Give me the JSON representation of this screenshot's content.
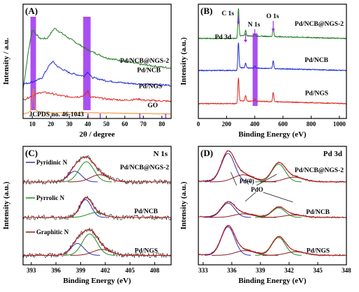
{
  "colors": {
    "black": "#1a1a1a",
    "green": "#1f7a1f",
    "blue": "#1c2bd6",
    "red": "#e0221b",
    "orange": "#f08a1c",
    "purple": "#9b30f0",
    "xpsFit": "#2f2fb0",
    "xpsComp1": "#2f2fb0",
    "xpsComp2": "#1f8a1f",
    "xpsComp3": "#8b1a1a",
    "xpsEnv": "#c41a1a"
  },
  "chart_data": [
    {
      "panel": "A",
      "type": "line",
      "panel_label": "(A)",
      "xlabel": "2θ / degree",
      "ylabel": "Intensity / a.u.",
      "xlim": [
        5,
        85
      ],
      "xticks": [
        "10",
        "20",
        "30",
        "40",
        "50",
        "60",
        "70",
        "80"
      ],
      "highlight_bands": [
        [
          9,
          12
        ],
        [
          37.5,
          41.5
        ]
      ],
      "series": [
        {
          "name": "Pd/NCB@NGS-2",
          "color": "green",
          "points": [
            [
              5,
              25
            ],
            [
              8,
              60
            ],
            [
              10,
              78
            ],
            [
              14,
              70
            ],
            [
              18,
              70
            ],
            [
              22,
              79
            ],
            [
              30,
              70
            ],
            [
              40,
              60
            ],
            [
              50,
              53
            ],
            [
              60,
              50
            ],
            [
              70,
              47
            ],
            [
              85,
              44
            ]
          ]
        },
        {
          "name": "Pd/NCB",
          "color": "blue",
          "points": [
            [
              5,
              30
            ],
            [
              10,
              32
            ],
            [
              15,
              35
            ],
            [
              19,
              46
            ],
            [
              21,
              50
            ],
            [
              24,
              45
            ],
            [
              30,
              40
            ],
            [
              35,
              38
            ],
            [
              38,
              37
            ],
            [
              40,
              41
            ],
            [
              42,
              36
            ],
            [
              50,
              33
            ],
            [
              60,
              31
            ],
            [
              70,
              30
            ],
            [
              85,
              29
            ]
          ]
        },
        {
          "name": "Pd/NGS",
          "color": "red",
          "points": [
            [
              5,
              16
            ],
            [
              10,
              20
            ],
            [
              15,
              23
            ],
            [
              20,
              22
            ],
            [
              25,
              20
            ],
            [
              30,
              19
            ],
            [
              35,
              19
            ],
            [
              38,
              20
            ],
            [
              40,
              24
            ],
            [
              41.5,
              19
            ],
            [
              46,
              18
            ],
            [
              50,
              17
            ],
            [
              60,
              16
            ],
            [
              68,
              17
            ],
            [
              70,
              16
            ],
            [
              85,
              15
            ]
          ]
        },
        {
          "name": "GO",
          "color": "orange",
          "points": [
            [
              5,
              4
            ],
            [
              8,
              5
            ],
            [
              9.5,
              8
            ],
            [
              10.5,
              28
            ],
            [
              11.5,
              8
            ],
            [
              13,
              6
            ],
            [
              20,
              5
            ],
            [
              40,
              5
            ],
            [
              85,
              4
            ]
          ]
        }
      ],
      "reference": {
        "name": "JCPDS no. 46-1043",
        "sticks": [
          40.1,
          46.7,
          68.1,
          82.1
        ]
      }
    },
    {
      "panel": "B",
      "type": "line",
      "panel_label": "(B)",
      "xlabel": "Binding Energy (eV)",
      "ylabel": "Intensity (a.u.)",
      "xlim": [
        0,
        1050
      ],
      "xticks": [
        "0",
        "200",
        "400",
        "600",
        "800",
        "1000"
      ],
      "highlight_bands": [
        [
          385,
          420
        ]
      ],
      "peak_labels": [
        {
          "text": "C 1s",
          "x": 284
        },
        {
          "text": "Pd 3d",
          "x": 335
        },
        {
          "text": "N 1s",
          "x": 400
        },
        {
          "text": "O 1s",
          "x": 531
        }
      ],
      "series": [
        {
          "name": "Pd/NCB@NGS-2",
          "color": "green",
          "baseline": 70,
          "peaks": [
            [
              284,
              26
            ],
            [
              335,
              5
            ],
            [
              400,
              2
            ],
            [
              531,
              8
            ]
          ]
        },
        {
          "name": "Pd/NCB",
          "color": "blue",
          "baseline": 42,
          "peaks": [
            [
              284,
              24
            ],
            [
              335,
              4
            ],
            [
              400,
              2
            ],
            [
              531,
              7
            ]
          ]
        },
        {
          "name": "Pd/NGS",
          "color": "red",
          "baseline": 13,
          "peaks": [
            [
              284,
              22
            ],
            [
              335,
              5
            ],
            [
              400,
              2
            ],
            [
              531,
              8
            ]
          ]
        }
      ]
    },
    {
      "panel": "C",
      "type": "line",
      "panel_label": "(C)",
      "title": "N 1s",
      "xlabel": "Binding Energy (eV)",
      "ylabel": "Intensity (a.u.)",
      "xlim": [
        392,
        410
      ],
      "xticks": [
        "393",
        "396",
        "399",
        "402",
        "405",
        "408"
      ],
      "components_legend": [
        "Pyridinic N",
        "Pyrrolic N",
        "Graphitic N"
      ],
      "series": [
        {
          "name": "Pd/NCB@NGS-2",
          "offset": 70,
          "peaks": [
            [
              398.3,
              9,
              0.8
            ],
            [
              399.7,
              17,
              0.9
            ],
            [
              401.3,
              6,
              1.1
            ]
          ]
        },
        {
          "name": "Pd/NCB",
          "offset": 40,
          "peaks": [
            [
              399.6,
              15,
              0.7
            ],
            [
              400.8,
              4,
              1.0
            ]
          ]
        },
        {
          "name": "Pd/NGS",
          "offset": 8,
          "peaks": [
            [
              398.6,
              10,
              0.8
            ],
            [
              400.1,
              18,
              0.9
            ],
            [
              401.6,
              5,
              1.1
            ]
          ]
        }
      ]
    },
    {
      "panel": "D",
      "type": "line",
      "panel_label": "(D)",
      "title": "Pd 3d",
      "xlabel": "Binding Energy (eV)",
      "ylabel": "Intensity (a.u.)",
      "xlim": [
        332.5,
        348
      ],
      "xticks": [
        "333",
        "336",
        "339",
        "342",
        "345",
        "348"
      ],
      "annotations": [
        "Pd(0)",
        "PdO"
      ],
      "series": [
        {
          "name": "Pd/NCB@NGS-2",
          "offset": 70,
          "peaks": [
            [
              335.6,
              24,
              0.7
            ],
            [
              337.2,
              6,
              1.0
            ],
            [
              340.9,
              15,
              0.7
            ],
            [
              342.5,
              4,
              1.0
            ]
          ]
        },
        {
          "name": "Pd/NCB",
          "offset": 40,
          "peaks": [
            [
              335.6,
              12,
              0.7
            ],
            [
              337.2,
              3,
              1.0
            ],
            [
              340.9,
              8,
              0.7
            ],
            [
              342.5,
              2,
              1.0
            ]
          ]
        },
        {
          "name": "Pd/NGS",
          "offset": 8,
          "peaks": [
            [
              335.6,
              24,
              0.7
            ],
            [
              337.4,
              4,
              1.0
            ],
            [
              340.9,
              15,
              0.7
            ],
            [
              342.7,
              3,
              1.0
            ]
          ]
        }
      ]
    }
  ]
}
